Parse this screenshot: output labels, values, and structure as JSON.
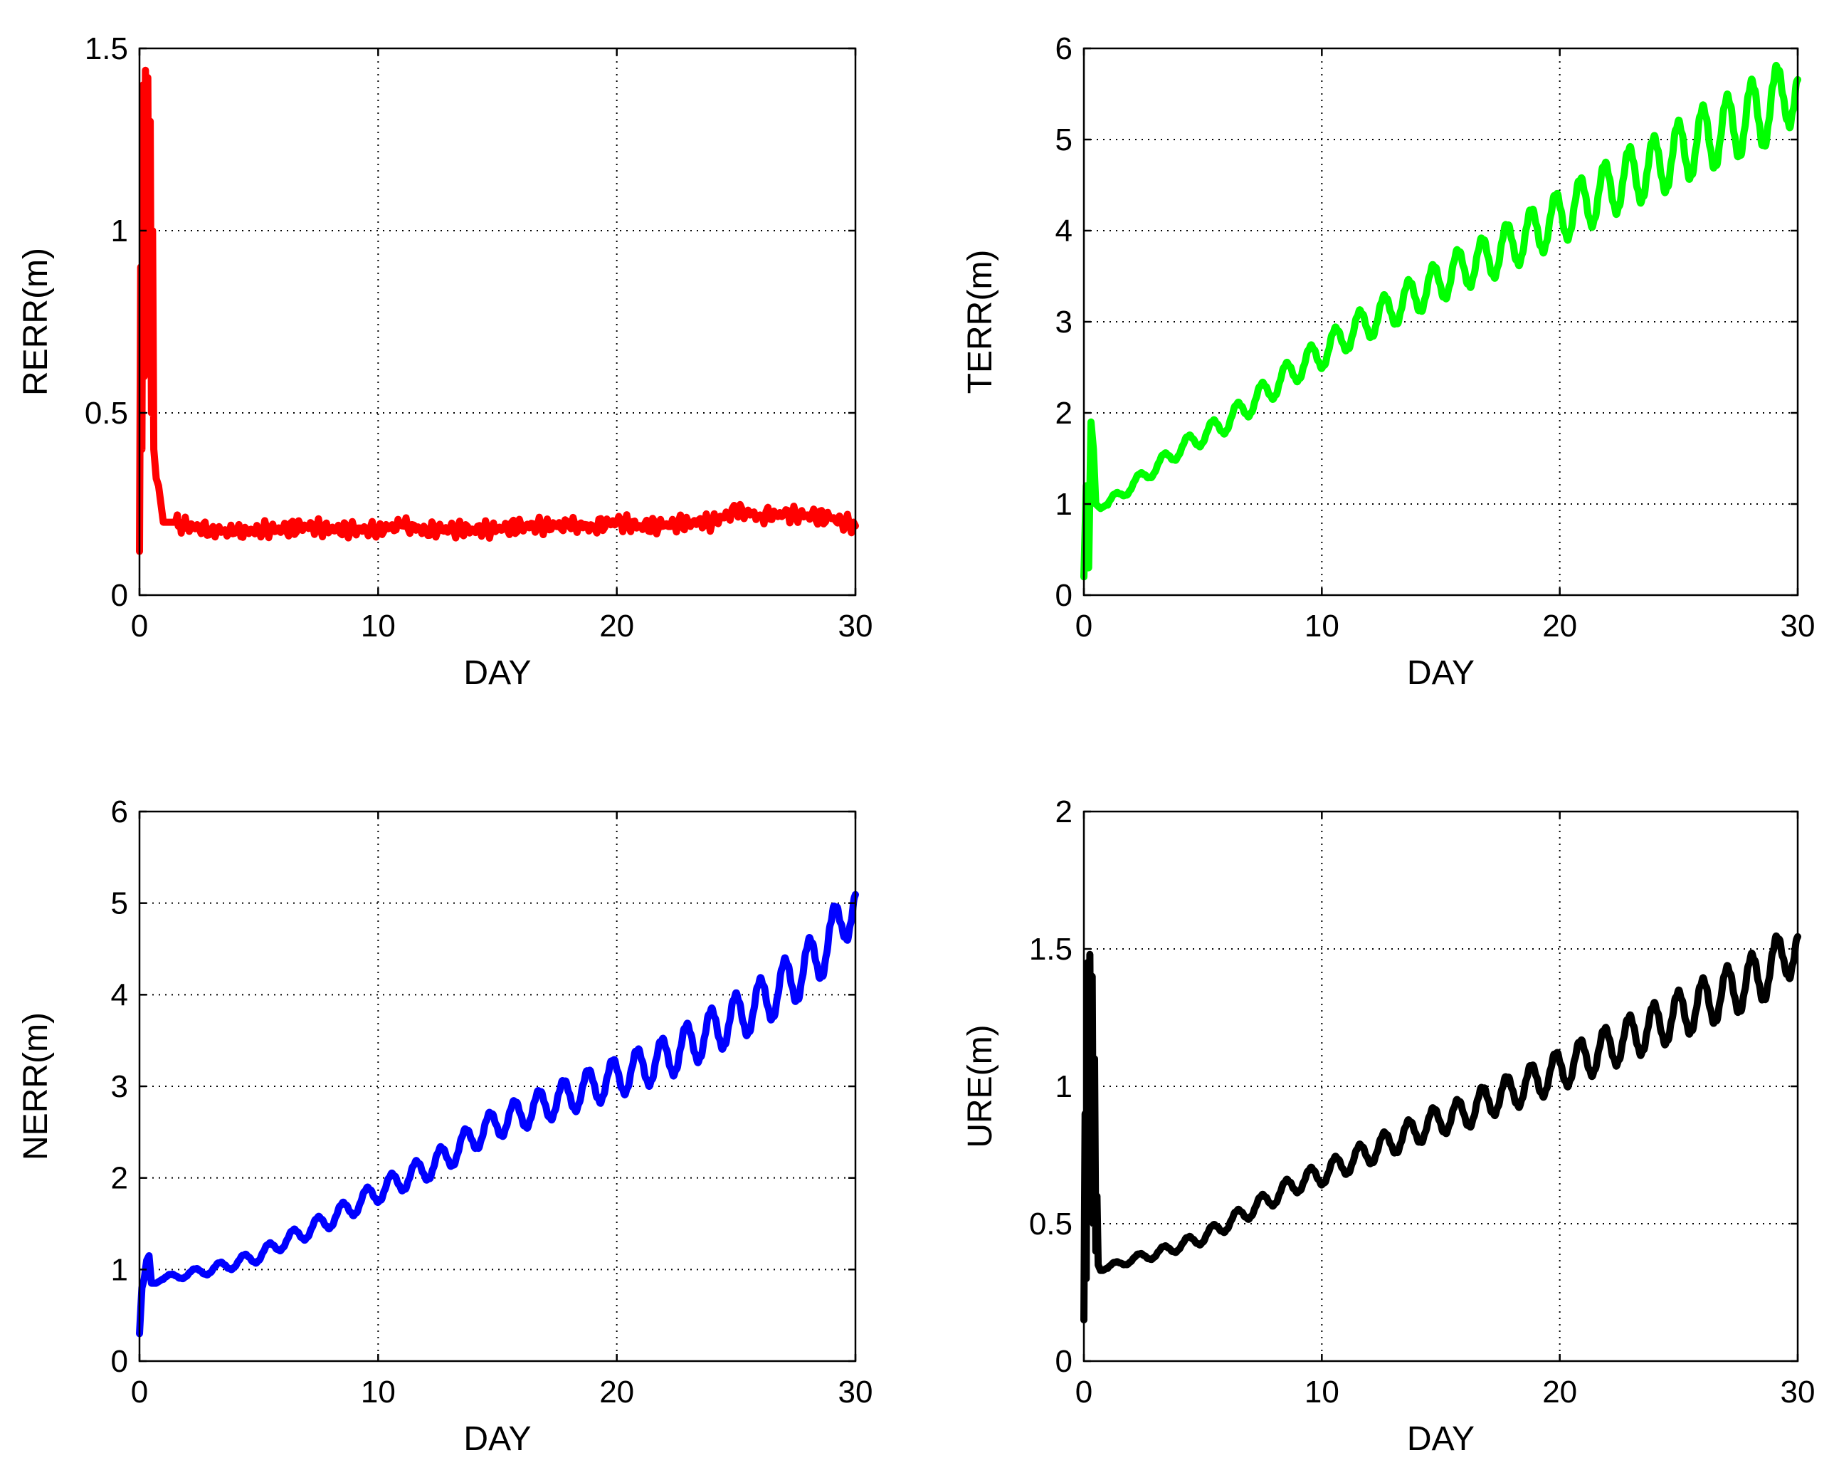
{
  "chart_data": [
    {
      "type": "line",
      "title": "",
      "xlabel": "DAY",
      "ylabel": "RERR(m)",
      "xlim": [
        0,
        30
      ],
      "ylim": [
        0,
        1.5
      ],
      "xticks": [
        0,
        10,
        20,
        30
      ],
      "yticks": [
        0,
        0.5,
        1,
        1.5
      ],
      "xtick_labels": [
        "0",
        "10",
        "20",
        "30"
      ],
      "ytick_labels": [
        "0",
        "0.5",
        "1",
        "1.5"
      ],
      "grid": true,
      "series": [
        {
          "name": "RERR",
          "color": "#ff0000",
          "x": [
            0,
            0.05,
            0.1,
            0.15,
            0.2,
            0.25,
            0.3,
            0.35,
            0.4,
            0.45,
            0.5,
            0.55,
            0.6,
            0.7,
            0.8,
            1.0,
            1.5,
            2,
            3,
            4,
            5,
            6,
            7,
            8,
            9,
            10,
            11,
            12,
            13,
            14,
            15,
            16,
            17,
            18,
            19,
            20,
            21,
            22,
            23,
            24,
            25,
            26,
            27,
            28,
            29,
            30
          ],
          "values": [
            0.12,
            0.9,
            0.4,
            1.4,
            0.6,
            1.44,
            0.9,
            1.42,
            0.7,
            1.3,
            0.5,
            1.0,
            0.4,
            0.32,
            0.3,
            0.2,
            0.2,
            0.19,
            0.18,
            0.17,
            0.18,
            0.18,
            0.19,
            0.18,
            0.18,
            0.18,
            0.19,
            0.18,
            0.18,
            0.18,
            0.18,
            0.19,
            0.19,
            0.19,
            0.19,
            0.2,
            0.19,
            0.19,
            0.2,
            0.2,
            0.23,
            0.22,
            0.22,
            0.22,
            0.21,
            0.19
          ]
        }
      ]
    },
    {
      "type": "line",
      "title": "",
      "xlabel": "DAY",
      "ylabel": "TERR(m)",
      "xlim": [
        0,
        30
      ],
      "ylim": [
        0,
        6
      ],
      "xticks": [
        0,
        10,
        20,
        30
      ],
      "yticks": [
        0,
        1,
        2,
        3,
        4,
        5,
        6
      ],
      "xtick_labels": [
        "0",
        "10",
        "20",
        "30"
      ],
      "ytick_labels": [
        "0",
        "1",
        "2",
        "3",
        "4",
        "5",
        "6"
      ],
      "grid": true,
      "series": [
        {
          "name": "TERR",
          "color": "#00ff00",
          "x": [
            0,
            0.1,
            0.2,
            0.3,
            0.4,
            0.5,
            0.7,
            1,
            2,
            3,
            4,
            5,
            6,
            7,
            8,
            9,
            10,
            11,
            12,
            13,
            14,
            15,
            16,
            17,
            18,
            19,
            20,
            21,
            22,
            23,
            24,
            25,
            26,
            27,
            28,
            29,
            29.5,
            30
          ],
          "values": [
            0.2,
            1.2,
            0.3,
            1.9,
            1.6,
            1.0,
            0.95,
            1.0,
            1.2,
            1.4,
            1.6,
            1.75,
            1.9,
            2.1,
            2.3,
            2.5,
            2.65,
            2.85,
            3.0,
            3.15,
            3.3,
            3.45,
            3.6,
            3.7,
            3.85,
            4.0,
            4.15,
            4.3,
            4.45,
            4.6,
            4.7,
            4.85,
            5.0,
            5.1,
            5.25,
            5.35,
            5.6,
            5.4
          ],
          "oscillation": {
            "period": 1.03,
            "amplitude": [
              0.05,
              0.4
            ]
          }
        }
      ]
    },
    {
      "type": "line",
      "title": "",
      "xlabel": "DAY",
      "ylabel": "NERR(m)",
      "xlim": [
        0,
        30
      ],
      "ylim": [
        0,
        6
      ],
      "xticks": [
        0,
        10,
        20,
        30
      ],
      "yticks": [
        0,
        1,
        2,
        3,
        4,
        5,
        6
      ],
      "xtick_labels": [
        "0",
        "10",
        "20",
        "30"
      ],
      "ytick_labels": [
        "0",
        "1",
        "2",
        "3",
        "4",
        "5",
        "6"
      ],
      "grid": true,
      "series": [
        {
          "name": "NERR",
          "color": "#0000ff",
          "x": [
            0,
            0.1,
            0.2,
            0.3,
            0.4,
            0.5,
            0.7,
            1,
            2,
            3,
            4,
            5,
            6,
            7,
            8,
            9,
            10,
            11,
            12,
            13,
            14,
            15,
            16,
            17,
            18,
            19,
            20,
            21,
            22,
            23,
            24,
            25,
            26,
            27,
            28,
            29,
            29.5,
            30
          ],
          "values": [
            0.3,
            0.8,
            0.9,
            1.1,
            1.15,
            0.85,
            0.85,
            0.9,
            0.95,
            1.0,
            1.07,
            1.15,
            1.3,
            1.42,
            1.55,
            1.7,
            1.85,
            1.98,
            2.1,
            2.25,
            2.45,
            2.6,
            2.7,
            2.8,
            2.9,
            3.0,
            3.1,
            3.2,
            3.3,
            3.45,
            3.6,
            3.75,
            3.9,
            4.1,
            4.3,
            4.6,
            4.9,
            4.9
          ],
          "oscillation": {
            "period": 1.03,
            "amplitude": [
              0.03,
              0.3
            ]
          }
        }
      ]
    },
    {
      "type": "line",
      "title": "",
      "xlabel": "DAY",
      "ylabel": "URE(m)",
      "xlim": [
        0,
        30
      ],
      "ylim": [
        0,
        2
      ],
      "xticks": [
        0,
        10,
        20,
        30
      ],
      "yticks": [
        0,
        0.5,
        1,
        1.5,
        2
      ],
      "xtick_labels": [
        "0",
        "10",
        "20",
        "30"
      ],
      "ytick_labels": [
        "0",
        "0.5",
        "1",
        "1.5",
        "2"
      ],
      "grid": true,
      "series": [
        {
          "name": "URE",
          "color": "#000000",
          "x": [
            0,
            0.05,
            0.1,
            0.15,
            0.2,
            0.25,
            0.3,
            0.35,
            0.4,
            0.45,
            0.5,
            0.55,
            0.6,
            0.7,
            0.8,
            1,
            2,
            3,
            4,
            5,
            6,
            7,
            8,
            9,
            10,
            11,
            12,
            13,
            14,
            15,
            16,
            17,
            18,
            19,
            20,
            21,
            22,
            23,
            24,
            25,
            26,
            27,
            28,
            29,
            29.5,
            30
          ],
          "values": [
            0.15,
            0.9,
            0.3,
            1.45,
            0.6,
            1.48,
            0.7,
            1.4,
            0.5,
            1.1,
            0.4,
            0.6,
            0.35,
            0.33,
            0.33,
            0.34,
            0.37,
            0.39,
            0.42,
            0.45,
            0.5,
            0.55,
            0.6,
            0.65,
            0.68,
            0.72,
            0.76,
            0.8,
            0.84,
            0.88,
            0.9,
            0.95,
            0.98,
            1.02,
            1.06,
            1.1,
            1.14,
            1.18,
            1.22,
            1.26,
            1.3,
            1.34,
            1.38,
            1.43,
            1.5,
            1.48
          ],
          "oscillation": {
            "period": 1.03,
            "amplitude": [
              0.01,
              0.1
            ]
          }
        }
      ]
    }
  ]
}
